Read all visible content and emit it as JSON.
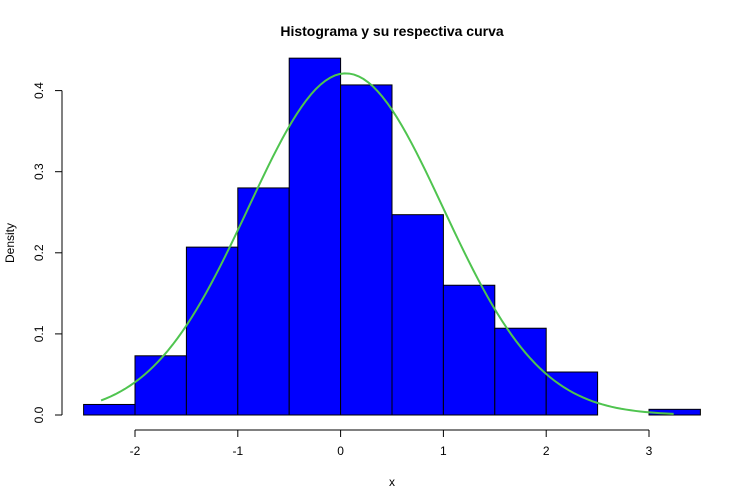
{
  "chart_data": {
    "type": "bar",
    "title": "Histograma y su respectiva curva",
    "xlabel": "x",
    "ylabel": "Density",
    "xlim": [
      -2.5,
      3.5
    ],
    "ylim": [
      0,
      0.44
    ],
    "x_ticks": [
      -2,
      -1,
      0,
      1,
      2,
      3
    ],
    "x_tick_labels": [
      "-2",
      "-1",
      "0",
      "1",
      "2",
      "3"
    ],
    "y_ticks": [
      0.0,
      0.1,
      0.2,
      0.3,
      0.4
    ],
    "y_tick_labels": [
      "0.0",
      "0.1",
      "0.2",
      "0.3",
      "0.4"
    ],
    "grid": false,
    "bins": [
      {
        "from": -2.5,
        "to": -2.0,
        "density": 0.013
      },
      {
        "from": -2.0,
        "to": -1.5,
        "density": 0.073
      },
      {
        "from": -1.5,
        "to": -1.0,
        "density": 0.207
      },
      {
        "from": -1.0,
        "to": -0.5,
        "density": 0.28
      },
      {
        "from": -0.5,
        "to": 0.0,
        "density": 0.44
      },
      {
        "from": 0.0,
        "to": 0.5,
        "density": 0.407
      },
      {
        "from": 0.5,
        "to": 1.0,
        "density": 0.247
      },
      {
        "from": 1.0,
        "to": 1.5,
        "density": 0.16
      },
      {
        "from": 1.5,
        "to": 2.0,
        "density": 0.107
      },
      {
        "from": 2.0,
        "to": 2.5,
        "density": 0.053
      },
      {
        "from": 2.5,
        "to": 3.0,
        "density": 0.0
      },
      {
        "from": 3.0,
        "to": 3.5,
        "density": 0.007
      }
    ],
    "curve": {
      "type": "normal-density",
      "mean": 0.05,
      "sd": 0.947,
      "x_range": [
        -2.33,
        3.24
      ]
    },
    "colors": {
      "bars": "#0000ff",
      "bar_border": "#000000",
      "curve": "#4fc44f"
    }
  }
}
